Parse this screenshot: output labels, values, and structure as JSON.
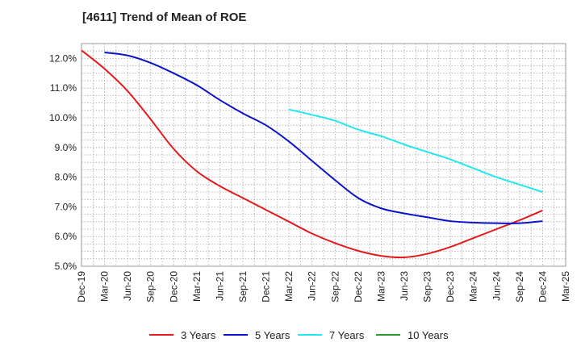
{
  "chart_data": {
    "type": "line",
    "title": "[4611]  Trend of Mean of ROE",
    "xlabel": "",
    "ylabel": "",
    "ylim": [
      5.0,
      12.5
    ],
    "y_ticks": [
      "5.0%",
      "6.0%",
      "7.0%",
      "8.0%",
      "9.0%",
      "10.0%",
      "11.0%",
      "12.0%"
    ],
    "y_tick_values": [
      5.0,
      6.0,
      7.0,
      8.0,
      9.0,
      10.0,
      11.0,
      12.0
    ],
    "x_ticks": [
      "Dec-19",
      "Mar-20",
      "Jun-20",
      "Sep-20",
      "Dec-20",
      "Mar-21",
      "Jun-21",
      "Sep-21",
      "Dec-21",
      "Mar-22",
      "Jun-22",
      "Sep-22",
      "Dec-22",
      "Mar-23",
      "Jun-23",
      "Sep-23",
      "Dec-23",
      "Mar-24",
      "Jun-24",
      "Sep-24",
      "Dec-24",
      "Mar-25"
    ],
    "grid": true,
    "legend_position": "bottom",
    "series": [
      {
        "name": "3 Years",
        "color": "#e41a1c",
        "values": [
          12.27,
          11.65,
          10.9,
          9.95,
          8.95,
          8.2,
          7.7,
          7.3,
          6.9,
          6.5,
          6.1,
          5.78,
          5.52,
          5.35,
          5.3,
          5.42,
          5.65,
          5.95,
          6.25,
          6.55,
          6.88,
          null
        ]
      },
      {
        "name": "5 Years",
        "color": "#0a14c8",
        "values": [
          null,
          12.2,
          12.1,
          11.85,
          11.5,
          11.1,
          10.6,
          10.15,
          9.75,
          9.2,
          8.55,
          7.9,
          7.3,
          6.95,
          6.78,
          6.65,
          6.52,
          6.47,
          6.45,
          6.45,
          6.52,
          null
        ]
      },
      {
        "name": "7 Years",
        "color": "#22e8ee",
        "values": [
          null,
          null,
          null,
          null,
          null,
          null,
          null,
          null,
          null,
          10.28,
          10.1,
          9.9,
          9.6,
          9.38,
          9.1,
          8.85,
          8.6,
          8.3,
          8.0,
          7.75,
          7.5,
          null
        ]
      },
      {
        "name": "10 Years",
        "color": "#2a9a2a",
        "values": [
          null,
          null,
          null,
          null,
          null,
          null,
          null,
          null,
          null,
          null,
          null,
          null,
          null,
          null,
          null,
          null,
          null,
          null,
          null,
          null,
          null,
          null
        ]
      }
    ]
  }
}
